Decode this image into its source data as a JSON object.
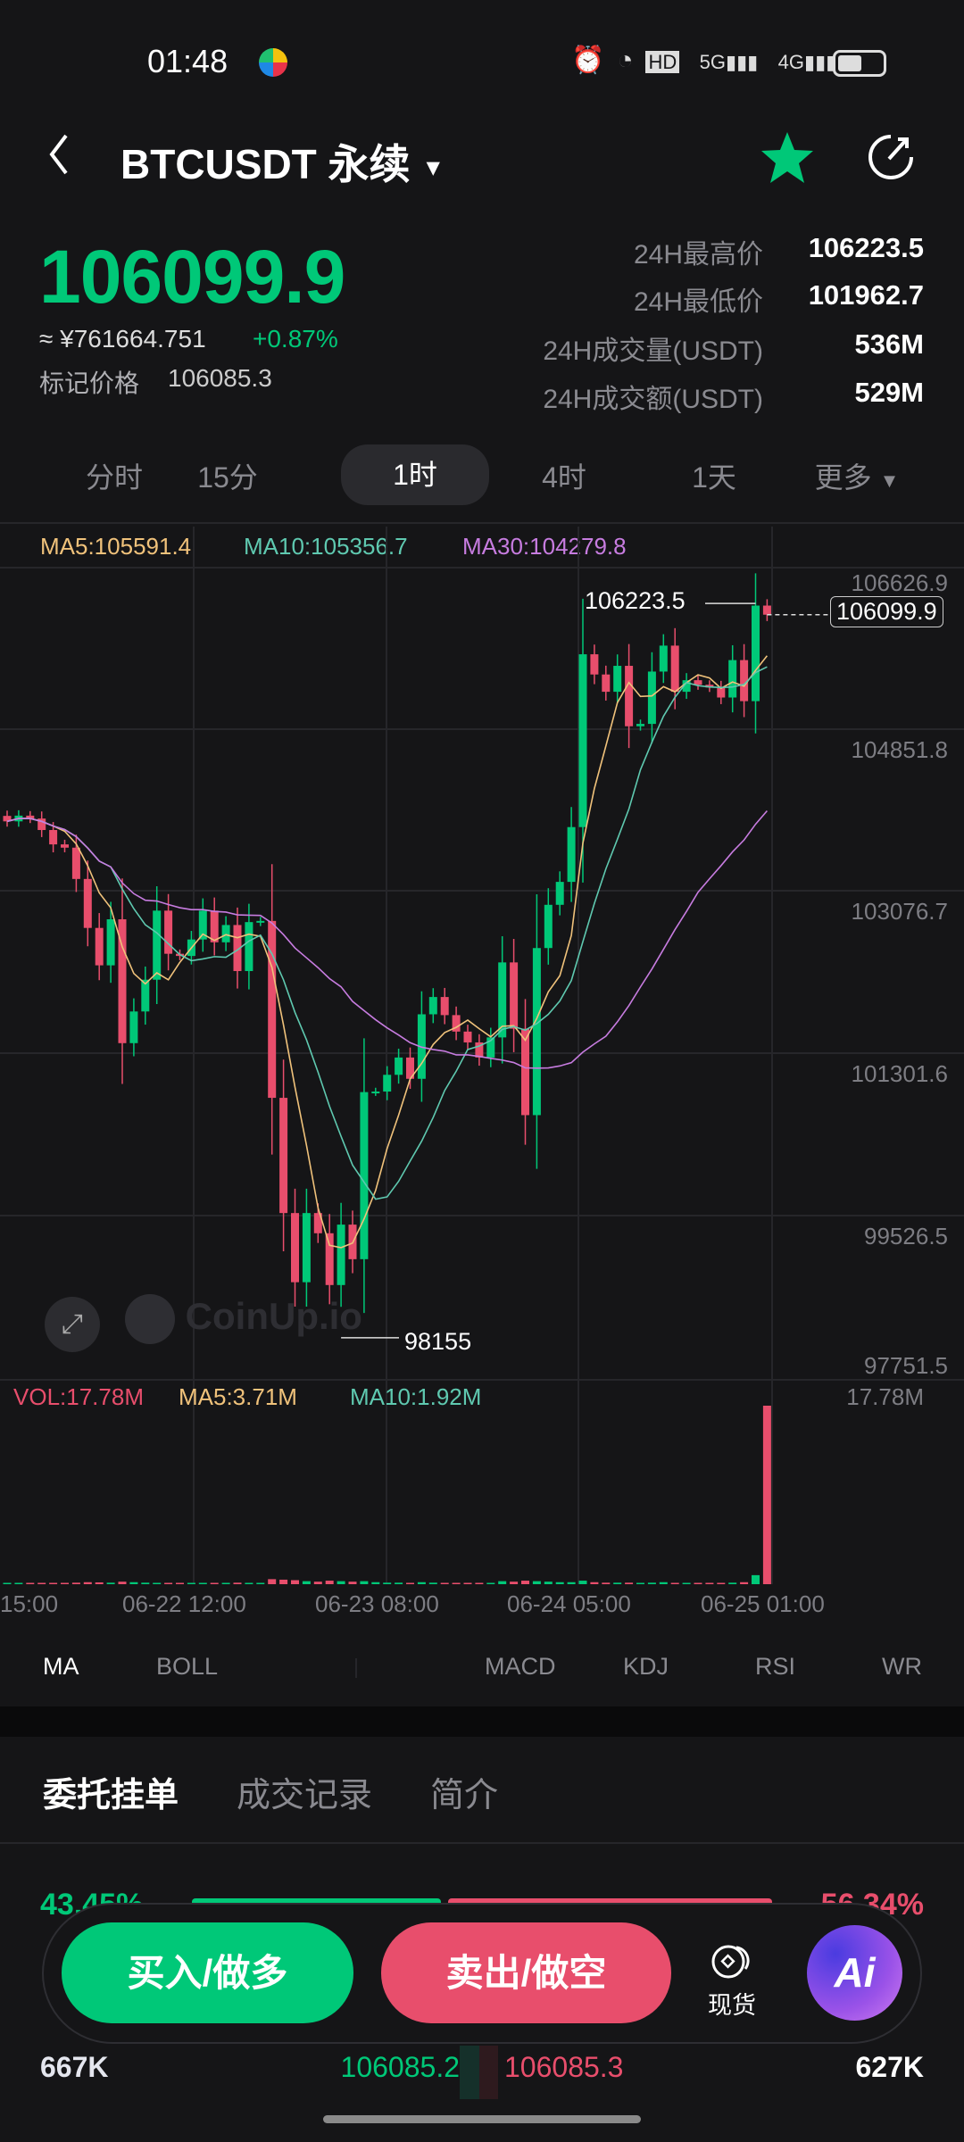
{
  "status_bar": {
    "time": "01:48",
    "icons": [
      "alarm-icon",
      "wifi-icon",
      "hd-icon",
      "5g-signal-icon",
      "4g-signal-icon",
      "battery-icon"
    ]
  },
  "header": {
    "title": "BTCUSDT 永续",
    "dropdown_icon": "caret-down-icon",
    "favorite": true
  },
  "ticker": {
    "last_price": "106099.9",
    "cny": "≈ ¥761664.751",
    "change": "+0.87%",
    "mark_label": "标记价格",
    "mark_price": "106085.3",
    "stats": [
      {
        "label": "24H最高价",
        "value": "106223.5"
      },
      {
        "label": "24H最低价",
        "value": "101962.7"
      },
      {
        "label": "24H成交量(USDT)",
        "value": "536M"
      },
      {
        "label": "24H成交额(USDT)",
        "value": "529M"
      }
    ]
  },
  "intervals": [
    "分时",
    "15分",
    "1时",
    "4时",
    "1天",
    "更多"
  ],
  "selected_interval": "1时",
  "colors": {
    "up": "#00c878",
    "down": "#e84e6c",
    "ma5": "#f0c27b",
    "ma10": "#5fc9b0",
    "ma30": "#c77ce0"
  },
  "ma_legend": {
    "ma5": "MA5:105591.4",
    "ma10": "MA10:105356.7",
    "ma30": "MA30:104279.8"
  },
  "vol_legend": {
    "vol": "VOL:17.78M",
    "ma5": "MA5:3.71M",
    "ma10": "MA10:1.92M",
    "max": "17.78M"
  },
  "chart_data": {
    "type": "candlestick",
    "y_ticks": [
      "106626.9",
      "104851.8",
      "103076.7",
      "101301.6",
      "99526.5",
      "97751.5"
    ],
    "ylim": [
      97751.5,
      106626.9
    ],
    "x_ticks": [
      "15:00",
      "06-22 12:00",
      "06-23 08:00",
      "06-24 05:00",
      "06-25 01:00"
    ],
    "high_label": "106223.5",
    "low_label": "98155",
    "current_price": "106099.9",
    "closes": [
      103829,
      103892,
      103860,
      103734,
      103576,
      103540,
      103196,
      102658,
      102247,
      102753,
      101392,
      101740,
      102089,
      102848,
      102374,
      102350,
      102531,
      102848,
      102500,
      102690,
      102184,
      102722,
      102735,
      100791,
      99525,
      98765,
      99525,
      99303,
      98734,
      99398,
      99018,
      100854,
      100860,
      101044,
      101234,
      101000,
      101709,
      101899,
      101700,
      101519,
      101400,
      101234,
      101455,
      102279,
      101551,
      100601,
      102437,
      102912,
      103164,
      103766,
      105665,
      105443,
      105253,
      105538,
      104874,
      104900,
      105475,
      105760,
      105253,
      105380,
      105330,
      105300,
      105190,
      105601,
      105150,
      106200,
      106099.9
    ],
    "volumes_m": [
      0.1,
      0.1,
      0.1,
      0.1,
      0.12,
      0.1,
      0.15,
      0.2,
      0.18,
      0.15,
      0.25,
      0.2,
      0.15,
      0.12,
      0.1,
      0.1,
      0.1,
      0.12,
      0.1,
      0.1,
      0.15,
      0.12,
      0.1,
      0.5,
      0.45,
      0.4,
      0.3,
      0.25,
      0.35,
      0.3,
      0.25,
      0.3,
      0.2,
      0.15,
      0.15,
      0.12,
      0.2,
      0.15,
      0.12,
      0.1,
      0.1,
      0.12,
      0.1,
      0.3,
      0.25,
      0.35,
      0.3,
      0.25,
      0.2,
      0.2,
      0.35,
      0.2,
      0.15,
      0.15,
      0.15,
      0.12,
      0.15,
      0.2,
      0.12,
      0.1,
      0.1,
      0.1,
      0.1,
      0.15,
      0.2,
      0.9,
      17.78
    ]
  },
  "indicators": [
    "MA",
    "BOLL",
    "MACD",
    "KDJ",
    "RSI",
    "WR"
  ],
  "watermark": "CoinUp.io",
  "bottom_tabs": [
    "委托挂单",
    "成交记录",
    "简介"
  ],
  "depth": {
    "buy_pct": "43.45%",
    "sell_pct": "56.34%",
    "buy_fraction": 0.4345,
    "bid_qty": "667K",
    "bid_price": "106085.2",
    "ask_price": "106085.3",
    "ask_qty": "627K"
  },
  "actions": {
    "buy": "买入/做多",
    "sell": "卖出/做空",
    "spot": "现货",
    "ai": "Ai"
  }
}
